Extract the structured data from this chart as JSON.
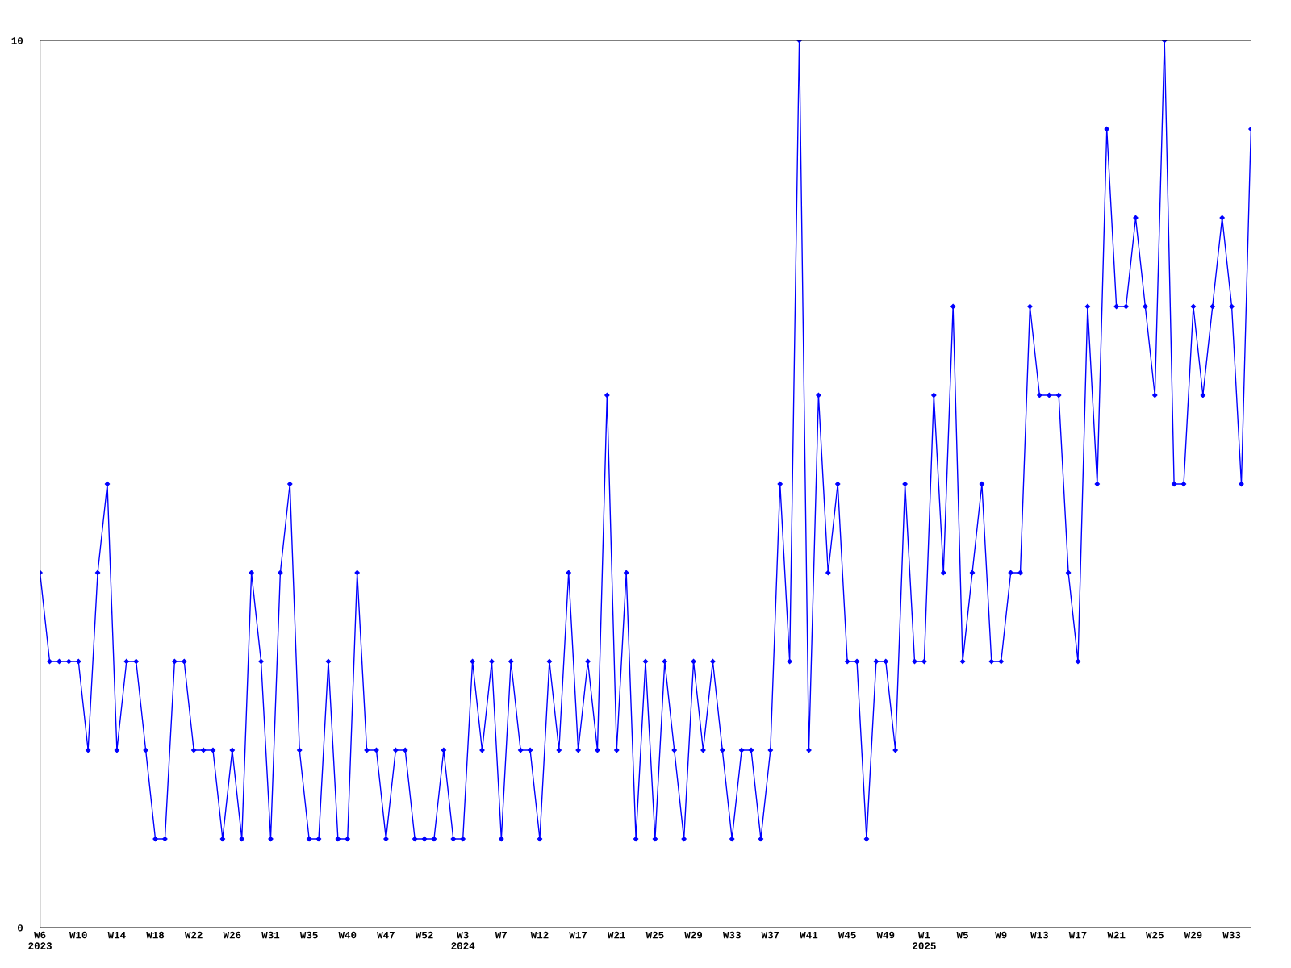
{
  "chart_data": {
    "type": "line",
    "categories": [
      "W6\n2023",
      null,
      null,
      null,
      "W10",
      null,
      null,
      null,
      "W14",
      null,
      null,
      null,
      "W18",
      null,
      null,
      null,
      "W22",
      null,
      null,
      null,
      "W26",
      null,
      null,
      null,
      "W31",
      null,
      null,
      null,
      "W35",
      null,
      null,
      null,
      "W40",
      null,
      null,
      null,
      "W47",
      null,
      null,
      null,
      "W52",
      null,
      null,
      null,
      "W3\n2024",
      null,
      null,
      null,
      "W7",
      null,
      null,
      null,
      "W12",
      null,
      null,
      null,
      "W17",
      null,
      null,
      null,
      "W21",
      null,
      null,
      null,
      "W25",
      null,
      null,
      null,
      "W29",
      null,
      null,
      null,
      "W33",
      null,
      null,
      null,
      "W37",
      null,
      null,
      null,
      "W41",
      null,
      null,
      null,
      "W45",
      null,
      null,
      null,
      "W49",
      null,
      null,
      null,
      "W1\n2025",
      null,
      null,
      null,
      "W5",
      null,
      null,
      null,
      "W9",
      null,
      null,
      null,
      "W13",
      null,
      null,
      null,
      "W17",
      null,
      null,
      null,
      "W21",
      null,
      null,
      null,
      "W25",
      null,
      null,
      null,
      "W29",
      null,
      null,
      null,
      "W33",
      null,
      null
    ],
    "series": [
      {
        "color": "#0000ff",
        "values": [
          4,
          3,
          3,
          3,
          3,
          2,
          4,
          5,
          2,
          3,
          3,
          2,
          1,
          1,
          3,
          3,
          2,
          2,
          2,
          1,
          2,
          1,
          4,
          3,
          1,
          4,
          5,
          2,
          1,
          1,
          3,
          1,
          1,
          4,
          2,
          2,
          1,
          2,
          2,
          1,
          1,
          1,
          2,
          1,
          1,
          3,
          2,
          3,
          1,
          3,
          2,
          2,
          1,
          3,
          2,
          4,
          2,
          3,
          2,
          6,
          2,
          4,
          1,
          3,
          1,
          3,
          2,
          1,
          3,
          2,
          3,
          2,
          1,
          2,
          2,
          1,
          2,
          5,
          3,
          10,
          2,
          6,
          4,
          5,
          3,
          3,
          1,
          3,
          3,
          2,
          5,
          3,
          3,
          6,
          4,
          7,
          3,
          4,
          5,
          3,
          3,
          4,
          4,
          7,
          6,
          6,
          6,
          4,
          3,
          7,
          5,
          9,
          7,
          7,
          8,
          7,
          6,
          10,
          5,
          5,
          7,
          6,
          7,
          8,
          7,
          5,
          9
        ]
      }
    ],
    "ylim": [
      0,
      10
    ],
    "yticks": [
      0,
      10
    ],
    "grid": false,
    "legend": false,
    "marker": "diamond",
    "line_style": "solid"
  }
}
